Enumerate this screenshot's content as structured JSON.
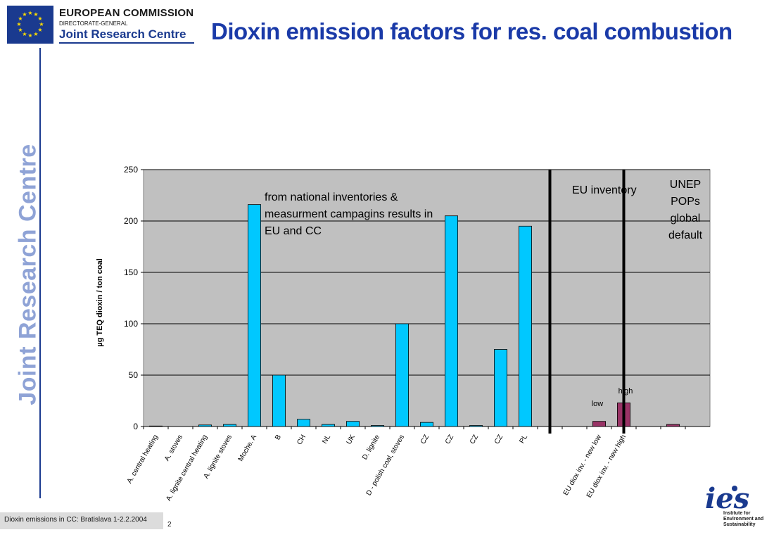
{
  "header": {
    "org_name": "EUROPEAN COMMISSION",
    "dg_label": "DIRECTORATE-GENERAL",
    "jrc_name": "Joint Research Centre",
    "title": "Dioxin emission factors for res. coal combustion"
  },
  "sidebar": {
    "vertical_text": "Joint Research Centre"
  },
  "footer": {
    "text": "Dioxin emissions in CC: Bratislava 1-2.2.2004",
    "page_number": "2"
  },
  "ies_logo": {
    "letters": "ies",
    "caption": "Institute for Environment and Sustainability"
  },
  "colors": {
    "title": "#1a3aa8",
    "bar_national": "#00c8ff",
    "bar_eu": "#993366",
    "plot_bg": "#c0c0c0",
    "brand_blue": "#1a3a8f"
  },
  "chart_data": {
    "type": "bar",
    "ylabel": "µg TEQ dioxin / ton coal",
    "ylim": [
      0,
      250
    ],
    "yticks": [
      0,
      50,
      100,
      150,
      200,
      250
    ],
    "grid": true,
    "categories": [
      "A. central heating",
      "A. stoves",
      "A. lignite central heating",
      "A. lignite stoves",
      "Moche. A",
      "B",
      "CH",
      "NL",
      "UK",
      "D. lignite",
      "D - polish coal, stoves",
      "CZ",
      "CZ",
      "CZ",
      "CZ",
      "PL",
      "",
      "",
      "EU diox inv. - new low",
      "EU diox inv. - new high",
      "",
      "",
      ""
    ],
    "values": [
      0.5,
      0,
      1.5,
      2,
      216,
      50,
      7,
      2,
      5,
      1,
      100,
      4,
      205,
      1,
      75,
      195,
      null,
      null,
      5,
      23,
      null,
      2,
      null
    ],
    "bar_colors": [
      "#00c8ff",
      "#00c8ff",
      "#00c8ff",
      "#00c8ff",
      "#00c8ff",
      "#00c8ff",
      "#00c8ff",
      "#00c8ff",
      "#00c8ff",
      "#00c8ff",
      "#00c8ff",
      "#00c8ff",
      "#00c8ff",
      "#00c8ff",
      "#00c8ff",
      "#00c8ff",
      "#00c8ff",
      "#00c8ff",
      "#993366",
      "#993366",
      "#993366",
      "#993366",
      "#993366"
    ],
    "separators_after_index": [
      16,
      19
    ],
    "annotations": {
      "national": [
        "from national inventories &",
        "measurment campagins results in",
        "EU and CC"
      ],
      "eu": "EU inventory",
      "unep": [
        "UNEP",
        "POPs",
        "global",
        "default"
      ],
      "low": "low",
      "high": "high"
    }
  }
}
